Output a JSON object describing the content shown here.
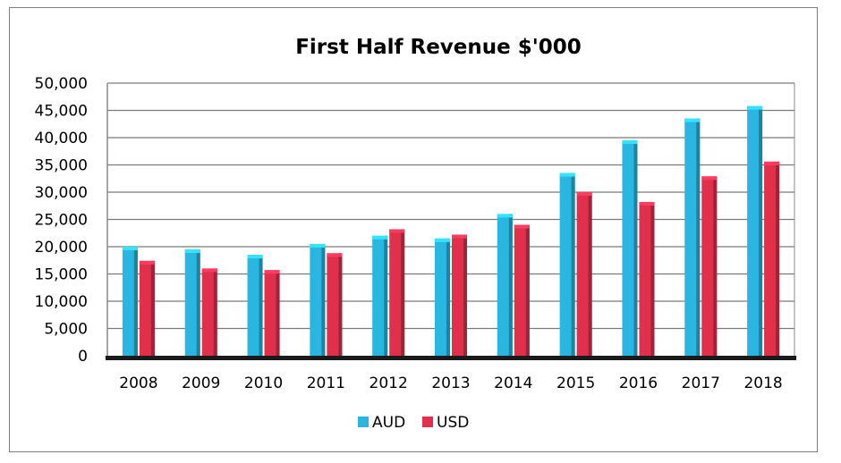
{
  "chart_data": {
    "type": "bar",
    "title": "First Half Revenue $'000",
    "xlabel": "",
    "ylabel": "",
    "categories": [
      "2008",
      "2009",
      "2010",
      "2011",
      "2012",
      "2013",
      "2014",
      "2015",
      "2016",
      "2017",
      "2018"
    ],
    "series": [
      {
        "name": "AUD",
        "color": "#29b6e0",
        "values": [
          20000,
          19500,
          18500,
          20500,
          22000,
          21500,
          26000,
          33500,
          39500,
          43500,
          45800
        ]
      },
      {
        "name": "USD",
        "color": "#e0304c",
        "values": [
          17400,
          16000,
          15700,
          18800,
          23200,
          22200,
          24000,
          30000,
          28200,
          32900,
          35600
        ]
      }
    ],
    "ylim": [
      0,
      50000
    ],
    "yticks": [
      "0",
      "5,000",
      "10,000",
      "15,000",
      "20,000",
      "25,000",
      "30,000",
      "35,000",
      "40,000",
      "45,000",
      "50,000"
    ],
    "ytick_values": [
      0,
      5000,
      10000,
      15000,
      20000,
      25000,
      30000,
      35000,
      40000,
      45000,
      50000
    ],
    "grid": true,
    "legend": "bottom"
  }
}
